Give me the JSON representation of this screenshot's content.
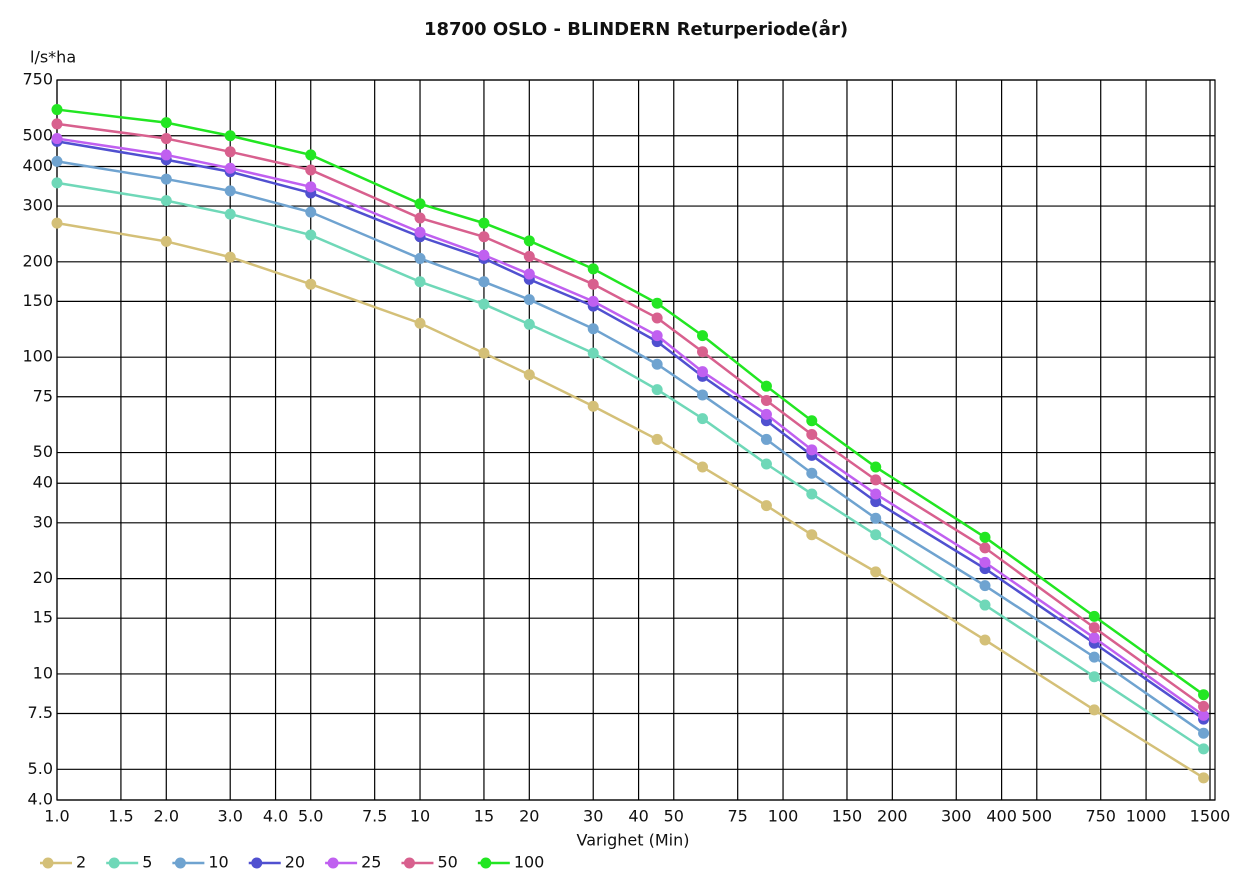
{
  "chart_data": {
    "type": "line",
    "title": "18700 OSLO - BLINDERN Returperiode(år)",
    "y_label": "l/s*ha",
    "x_label": "Varighet  (Min)",
    "log_x": true,
    "log_y": true,
    "grid": true,
    "legend": "bottom-left",
    "x": [
      1,
      2,
      3,
      5,
      10,
      15,
      20,
      30,
      45,
      60,
      90,
      120,
      180,
      360,
      720,
      1440
    ],
    "xlim": [
      1,
      1500
    ],
    "xticks": [
      {
        "value": 1,
        "label": "1.0"
      },
      1.5,
      {
        "value": 2,
        "label": "2.0"
      },
      {
        "value": 3,
        "label": "3.0"
      },
      {
        "value": 4,
        "label": "4.0"
      },
      {
        "value": 5,
        "label": "5.0"
      },
      7.5,
      10,
      15,
      20,
      30,
      40,
      50,
      75,
      100,
      150,
      200,
      300,
      400,
      500,
      750,
      1000,
      1500
    ],
    "ylim": [
      4,
      750
    ],
    "yticks": [
      {
        "value": 4,
        "label": "4.0"
      },
      {
        "value": 5,
        "label": "5.0"
      },
      7.5,
      10,
      15,
      20,
      30,
      40,
      50,
      75,
      100,
      150,
      200,
      300,
      400,
      500,
      750
    ],
    "series": [
      {
        "name": "2",
        "color": "#d4c078",
        "values": [
          265,
          232,
          207,
          170,
          128,
          103,
          88,
          70,
          55,
          45,
          34,
          27.5,
          21,
          12.8,
          7.7,
          4.7
        ]
      },
      {
        "name": "5",
        "color": "#6fd8b8",
        "values": [
          355,
          312,
          283,
          243,
          173,
          147,
          127,
          103,
          79,
          64,
          46,
          37,
          27.5,
          16.5,
          9.8,
          5.8
        ]
      },
      {
        "name": "10",
        "color": "#6fa3d0",
        "values": [
          415,
          365,
          335,
          287,
          205,
          173,
          152,
          123,
          95,
          76,
          55,
          43,
          31,
          19,
          11.3,
          6.5
        ]
      },
      {
        "name": "20",
        "color": "#5050d0",
        "values": [
          480,
          420,
          385,
          330,
          240,
          205,
          176,
          145,
          112,
          87,
          63,
          49,
          35,
          21.5,
          12.5,
          7.2
        ]
      },
      {
        "name": "25",
        "color": "#c060f0",
        "values": [
          490,
          435,
          395,
          345,
          248,
          210,
          183,
          150,
          117,
          90,
          66,
          51,
          37,
          22.5,
          13,
          7.4
        ]
      },
      {
        "name": "50",
        "color": "#d8608e",
        "values": [
          545,
          490,
          445,
          390,
          275,
          240,
          208,
          170,
          133,
          104,
          73,
          57,
          41,
          25,
          14,
          7.9
        ]
      },
      {
        "name": "100",
        "color": "#22e622",
        "values": [
          605,
          550,
          500,
          435,
          305,
          265,
          233,
          190,
          148,
          117,
          81,
          63,
          45,
          27,
          15.2,
          8.6
        ]
      }
    ]
  }
}
